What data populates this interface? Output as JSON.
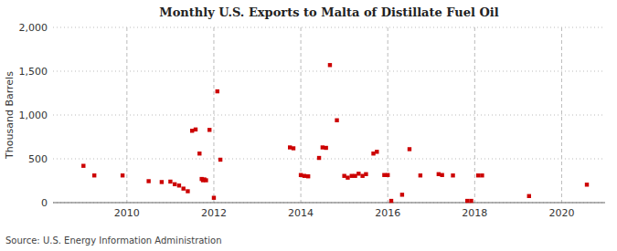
{
  "chart_data": {
    "type": "scatter",
    "title": "Monthly U.S. Exports to Malta of Distillate Fuel Oil",
    "ylabel": "Thousand Barrels",
    "source": "Source: U.S. Energy Information Administration",
    "color": "#cc0000",
    "marker": "square",
    "grid": true,
    "xlim": [
      2008.3,
      2021.0
    ],
    "xticks": [
      2010,
      2012,
      2014,
      2016,
      2018,
      2020
    ],
    "ylim": [
      0,
      2000
    ],
    "yticks": [
      0,
      500,
      {
        "value": 1000,
        "label": "1,000"
      },
      {
        "value": 1500,
        "label": "1,500"
      },
      {
        "value": 2000,
        "label": "2,000"
      }
    ],
    "x": [
      2009.0,
      2009.25,
      2009.9,
      2010.5,
      2010.8,
      2011.0,
      2011.1,
      2011.2,
      2011.3,
      2011.4,
      2011.5,
      2011.58,
      2011.67,
      2011.72,
      2011.75,
      2011.78,
      2011.82,
      2011.9,
      2012.0,
      2012.08,
      2012.15,
      2013.75,
      2013.83,
      2014.0,
      2014.08,
      2014.17,
      2014.42,
      2014.5,
      2014.58,
      2014.67,
      2014.83,
      2015.0,
      2015.08,
      2015.17,
      2015.25,
      2015.33,
      2015.42,
      2015.5,
      2015.67,
      2015.75,
      2015.92,
      2016.0,
      2016.08,
      2016.33,
      2016.5,
      2016.75,
      2017.17,
      2017.25,
      2017.5,
      2017.83,
      2017.92,
      2018.08,
      2018.17,
      2019.25,
      2020.58
    ],
    "values": [
      420,
      310,
      310,
      245,
      235,
      240,
      210,
      195,
      160,
      130,
      820,
      835,
      560,
      270,
      255,
      265,
      255,
      830,
      55,
      1270,
      490,
      630,
      620,
      315,
      305,
      300,
      510,
      630,
      625,
      1570,
      940,
      305,
      285,
      305,
      305,
      330,
      305,
      325,
      560,
      580,
      315,
      315,
      20,
      90,
      610,
      310,
      325,
      315,
      310,
      20,
      20,
      310,
      310,
      75,
      205
    ]
  }
}
